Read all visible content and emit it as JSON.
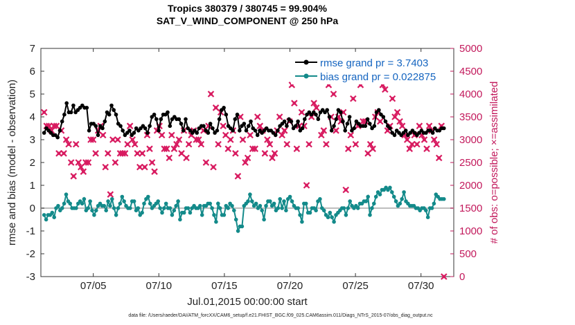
{
  "chart_data": {
    "type": "line",
    "title": "Tropics 380379 / 380745 = 99.904%",
    "subtitle": "SAT_V_WIND_COMPONENT @ 250 hPa",
    "xlabel": "Jul.01,2015 00:00:00 start",
    "ylabel": "rmse and bias (model - observation)",
    "y2label": "# of obs: o=possible; ×=assimilated",
    "footnote": "data file: /Users/raeder/DAI/ATM_forcXX/CAM6_setup/f.e21.FHIST_BGC.f09_025.CAM6assim.011/Diags_NTrS_2015-07/obs_diag_output.nc",
    "xlim": [
      1.0,
      32.5
    ],
    "ylim": [
      -3,
      7
    ],
    "y2lim": [
      0,
      5000
    ],
    "x_ticks": [
      5,
      10,
      15,
      20,
      25,
      30
    ],
    "x_tick_labels": [
      "07/05",
      "07/10",
      "07/15",
      "07/20",
      "07/25",
      "07/30"
    ],
    "y_ticks": [
      -3,
      -2,
      -1,
      0,
      1,
      2,
      3,
      4,
      5,
      6,
      7
    ],
    "y_tick_labels": [
      "-3",
      "-2",
      "-1",
      "0",
      "1",
      "2",
      "3",
      "4",
      "5",
      "6",
      "7"
    ],
    "y2_ticks": [
      0,
      500,
      1000,
      1500,
      2000,
      2500,
      3000,
      3500,
      4000,
      4500,
      5000
    ],
    "y2_tick_labels": [
      "0",
      "500",
      "1000",
      "1500",
      "2000",
      "2500",
      "3000",
      "3500",
      "4000",
      "4500",
      "5000"
    ],
    "zero_line": 0,
    "legend_position": "top-right",
    "colors": {
      "rmse": "#000000",
      "bias": "#138a8a",
      "obs": "#d81b60",
      "zero": "#bdbdbd"
    },
    "series": [
      {
        "name": "rmse grand pr = 3.7403",
        "axis": "left",
        "marker": "circle",
        "values": [
          3.3,
          3.5,
          3.4,
          3.3,
          3.2,
          3.2,
          3.1,
          3.4,
          3.8,
          4.1,
          4.6,
          4.2,
          4.2,
          4.5,
          4.2,
          4.3,
          4.4,
          4.5,
          4.4,
          4.4,
          3.4,
          3.7,
          3.7,
          3.6,
          3.2,
          3.6,
          3.5,
          3.8,
          4.2,
          4.1,
          4.5,
          4.3,
          4.1,
          3.7,
          3.6,
          3.4,
          3.2,
          3.3,
          3.4,
          3.2,
          3.3,
          3.5,
          3.4,
          3.5,
          3.6,
          3.5,
          3.3,
          3.6,
          4.0,
          4.1,
          3.9,
          3.4,
          3.9,
          4.1,
          4.1,
          4.2,
          3.6,
          3.9,
          4.0,
          3.9,
          3.9,
          3.7,
          3.4,
          3.9,
          3.5,
          3.4,
          3.3,
          3.4,
          3.3,
          3.5,
          3.6,
          3.6,
          3.4,
          3.3,
          3.7,
          3.5,
          3.3,
          3.4,
          3.9,
          4.3,
          4.4,
          4.1,
          3.6,
          3.5,
          3.4,
          3.9,
          4.1,
          3.4,
          3.6,
          3.7,
          3.4,
          3.6,
          3.8,
          3.5,
          3.4,
          3.2,
          3.4,
          3.3,
          3.4,
          3.5,
          3.4,
          3.4,
          3.3,
          3.2,
          3.4,
          3.6,
          3.7,
          3.8,
          3.6,
          3.9,
          3.8,
          3.5,
          3.6,
          3.8,
          3.4,
          3.5,
          3.9,
          4.1,
          4.2,
          4.1,
          4.2,
          4.1,
          3.9,
          4.2,
          4.3,
          4.2,
          4.3,
          4.0,
          3.4,
          3.6,
          3.9,
          4.3,
          4.2,
          3.8,
          3.4,
          3.7,
          4.0,
          3.4,
          3.5,
          3.8,
          3.7,
          3.6,
          3.6,
          3.6,
          3.9,
          3.7,
          3.5,
          3.6,
          4.2,
          4.3,
          4.1,
          4.0,
          3.8,
          3.6,
          3.5,
          3.3,
          3.2,
          3.4,
          3.3,
          3.2,
          3.3,
          3.4,
          3.2,
          3.3,
          3.4,
          3.3,
          3.2,
          3.3,
          3.4,
          3.3,
          3.3,
          3.4,
          3.4,
          3.3,
          3.5,
          3.4,
          3.4,
          3.5,
          3.5
        ]
      },
      {
        "name": "bias grand pr = 0.022875",
        "axis": "left",
        "marker": "circle",
        "values": [
          -0.3,
          -0.5,
          -0.3,
          -0.3,
          -0.2,
          -0.4,
          0.0,
          0.1,
          -0.1,
          0.0,
          0.2,
          0.6,
          0.3,
          0.2,
          0.0,
          0.0,
          0.0,
          0.2,
          0.3,
          0.2,
          0.4,
          -0.1,
          0.0,
          0.3,
          -0.1,
          -0.3,
          -0.1,
          0.1,
          0.2,
          0.1,
          0.1,
          -0.1,
          0.3,
          0.1,
          0.4,
          0.0,
          -0.3,
          0.0,
          0.2,
          0.5,
          0.3,
          0.1,
          0.0,
          0.0,
          0.3,
          0.3,
          -0.1,
          0.0,
          -0.3,
          -0.2,
          0.2,
          0.4,
          0.5,
          0.2,
          0.0,
          0.1,
          0.2,
          0.3,
          0.0,
          -0.2,
          0.0,
          0.2,
          0.0,
          0.0,
          -0.3,
          -0.1,
          0.1,
          0.3,
          -0.5,
          -0.2,
          -0.2,
          0.0,
          0.0,
          -0.2,
          0.0,
          0.1,
          0.0,
          0.0,
          0.1,
          -0.3,
          0.1,
          0.1,
          0.2,
          0.2,
          0.0,
          -0.3,
          -0.6,
          0.2,
          0.0,
          -0.3,
          -0.3,
          0.1,
          0.0,
          0.2,
          0.1,
          -0.1,
          -0.5,
          -1.0,
          -0.8,
          -0.8,
          0.1,
          0.2,
          0.3,
          0.6,
          0.3,
          0.1,
          0.2,
          0.0,
          0.1,
          -0.1,
          -0.5,
          0.1,
          0.3,
          0.3,
          0.1,
          0.2,
          -0.1,
          0.0,
          0.4,
          0.0,
          0.3,
          -0.1,
          0.4,
          0.5,
          0.3,
          0.1,
          0.0,
          0.0,
          -0.3,
          -0.6,
          0.2,
          0.2,
          -0.2,
          -0.2,
          0.0,
          0.0,
          -0.1,
          0.3,
          0.4,
          0.0,
          -0.1,
          -0.3,
          -0.4,
          -0.2,
          -0.4,
          -0.6,
          -0.3,
          -0.2,
          -0.1,
          0.0,
          0.0,
          -0.3,
          0.0,
          0.3,
          0.1,
          0.0,
          0.1,
          0.0,
          0.2,
          0.2,
          0.3,
          0.3,
          0.5,
          -0.3,
          0.0,
          0.2,
          0.5,
          0.7,
          0.6,
          0.8,
          0.8,
          0.9,
          0.8,
          0.9,
          0.7,
          0.5,
          0.3,
          0.1,
          0.2,
          0.4,
          0.7,
          0.3,
          0.2,
          0.1,
          0.1,
          0.1,
          0.0,
          0.0,
          -0.1,
          0.0,
          0.0,
          -0.1,
          -0.4,
          0.0,
          0.0,
          0.2,
          0.6,
          0.5,
          0.4,
          0.4,
          0.4
        ]
      },
      {
        "name": "# of obs assimilated",
        "axis": "right",
        "marker": "cross",
        "values": [
          3600,
          3300,
          3300,
          3200,
          3300,
          3300,
          2700,
          3200,
          2700,
          3000,
          2900,
          2500,
          2200,
          2900,
          2500,
          2400,
          2300,
          2500,
          2500,
          3000,
          3000,
          2700,
          3200,
          3300,
          3100,
          2400,
          2700,
          1800,
          3000,
          2500,
          3000,
          2700,
          2700,
          2700,
          2900,
          3300,
          3000,
          2900,
          2700,
          2400,
          2700,
          2400,
          3100,
          2800,
          2500,
          2300,
          3200,
          3300,
          3100,
          2800,
          2800,
          2600,
          3100,
          2800,
          2900,
          3000,
          2700,
          3200,
          2600,
          2900,
          3100,
          3200,
          3000,
          3000,
          2900,
          3200,
          2500,
          3300,
          4000,
          2400,
          3700,
          2900,
          3600,
          3300,
          3100,
          2800,
          3000,
          3200,
          2700,
          2200,
          3500,
          3000,
          2500,
          2600,
          3100,
          2800,
          2800,
          3500,
          3300,
          3200,
          2700,
          3000,
          2900,
          2600,
          2700,
          3200,
          3500,
          3100,
          3200,
          2900,
          3400,
          4200,
          3800,
          2800,
          3300,
          3600,
          3300,
          2000,
          2900,
          3500,
          3800,
          3700,
          4300,
          3100,
          3200,
          2900,
          4200,
          3500,
          4000,
          3200,
          3500,
          3400,
          3600,
          1900,
          2800,
          3100,
          3900,
          2900,
          3300,
          4200,
          3400,
          3400,
          2700,
          2900,
          2800,
          3500,
          3600,
          3400,
          4200,
          4100,
          3200,
          3300,
          3900,
          3500,
          3600,
          3400,
          3300,
          3100,
          3000,
          2800,
          2900,
          3100,
          2900,
          3300,
          3100,
          3000,
          2800,
          3300,
          3200,
          3000,
          2900,
          2600,
          3300,
          0
        ]
      }
    ]
  }
}
